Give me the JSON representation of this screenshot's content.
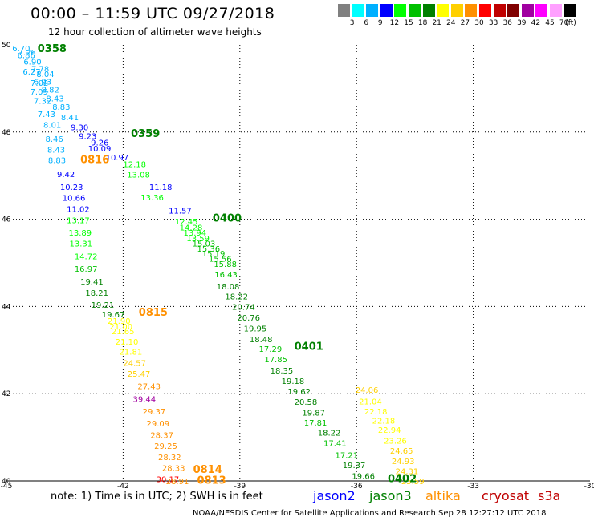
{
  "header": {
    "title": "00:00 – 11:59 UTC 09/27/2018",
    "subtitle": "12 hour collection of altimeter wave heights"
  },
  "colorbar": {
    "colors": [
      "#808080",
      "#00ffff",
      "#00b0ff",
      "#0000ff",
      "#00ff00",
      "#00c000",
      "#008000",
      "#ffff00",
      "#ffd000",
      "#ff9000",
      "#ff0000",
      "#c00000",
      "#800000",
      "#a000a0",
      "#ff00ff",
      "#ffa0ff",
      "#000000"
    ],
    "ticks": [
      "3",
      "6",
      "9",
      "12",
      "15",
      "18",
      "21",
      "24",
      "27",
      "30",
      "33",
      "36",
      "39",
      "42",
      "45",
      "70"
    ],
    "unit": "(ft)"
  },
  "legend": {
    "note": "note: 1) Time is in UTC; 2) SWH is in feet",
    "satellites": [
      {
        "name": "jason2",
        "color": "#0000ff"
      },
      {
        "name": "jason3",
        "color": "#008000"
      },
      {
        "name": "altika",
        "color": "#ff9000"
      },
      {
        "name": "cryosat",
        "color": "#c00000"
      },
      {
        "name": "s3a",
        "color": "#c00000"
      }
    ]
  },
  "footer": {
    "credit": "NOAA/NESDIS Center for Satellite Applications and Research   Sep 28 12:27:12 UTC 2018"
  },
  "chart_data": {
    "type": "scatter",
    "title": "12 hour collection of altimeter wave heights",
    "xlim": [
      -45,
      -30
    ],
    "ylim": [
      40,
      50
    ],
    "xticks": [
      "-45",
      "-42",
      "-39",
      "-36",
      "-33",
      "-30"
    ],
    "yticks": [
      "40",
      "42",
      "44",
      "46",
      "48",
      "50"
    ],
    "grid": true,
    "times": [
      {
        "label": "0358",
        "lon": -44.2,
        "lat": 49.93
      },
      {
        "label": "0359",
        "lon": -41.8,
        "lat": 47.98
      },
      {
        "label": "0400",
        "lon": -39.7,
        "lat": 46.04
      },
      {
        "label": "0401",
        "lon": -37.6,
        "lat": 43.1
      },
      {
        "label": "0402",
        "lon": -35.2,
        "lat": 40.06
      },
      {
        "label": "0815",
        "lon": -41.6,
        "lat": 43.88
      },
      {
        "label": "0814",
        "lon": -40.2,
        "lat": 40.28
      },
      {
        "label": "0813",
        "lon": -40.1,
        "lat": 40.03
      },
      {
        "label": "0816",
        "lon": -43.1,
        "lat": 47.38
      }
    ],
    "tracks": [
      {
        "points": [
          [
            -44.85,
            49.93,
            "6.70"
          ],
          [
            -44.7,
            49.83,
            "7.26"
          ],
          [
            -44.72,
            49.77,
            "6.86"
          ],
          [
            -44.56,
            49.62,
            "6.90"
          ],
          [
            -44.36,
            49.46,
            "7.78"
          ],
          [
            -44.58,
            49.39,
            "6.27"
          ],
          [
            -44.23,
            49.34,
            "8.04"
          ],
          [
            -44.3,
            49.16,
            "6.93"
          ],
          [
            -44.38,
            49.14,
            "7.02"
          ],
          [
            -44.1,
            48.98,
            "8.82"
          ],
          [
            -44.39,
            48.93,
            "7.09"
          ],
          [
            -43.98,
            48.78,
            "8.43"
          ],
          [
            -44.3,
            48.72,
            "7.32"
          ],
          [
            -43.82,
            48.58,
            "8.83"
          ],
          [
            -44.2,
            48.42,
            "7.43"
          ],
          [
            -43.6,
            48.35,
            "8.41"
          ],
          [
            -44.05,
            48.17,
            "8.01"
          ]
        ]
      },
      {
        "points": [
          [
            -43.35,
            48.12,
            "9.30"
          ],
          [
            -43.14,
            47.91,
            "9.23"
          ],
          [
            -42.83,
            47.77,
            "9.26"
          ],
          [
            -42.9,
            47.63,
            "10.09"
          ],
          [
            -42.45,
            47.43,
            "10.97"
          ]
        ]
      },
      {
        "points": [
          [
            -44.0,
            47.85,
            "8.46"
          ],
          [
            -43.95,
            47.6,
            "8.43"
          ],
          [
            -43.93,
            47.36,
            "8.83"
          ],
          [
            -43.7,
            47.04,
            "9.42"
          ],
          [
            -43.62,
            46.75,
            "10.23"
          ],
          [
            -43.56,
            46.5,
            "10.66"
          ],
          [
            -43.45,
            46.24,
            "11.02"
          ],
          [
            -43.45,
            45.98,
            "13.17"
          ],
          [
            -43.4,
            45.7,
            "13.89"
          ],
          [
            -43.38,
            45.45,
            "13.31"
          ],
          [
            -43.25,
            45.16,
            "14.72"
          ],
          [
            -43.25,
            44.87,
            "16.97"
          ],
          [
            -43.1,
            44.58,
            "19.41"
          ],
          [
            -42.97,
            44.32,
            "18.21"
          ],
          [
            -42.82,
            44.04,
            "19.21"
          ],
          [
            -42.55,
            43.82,
            "19.67"
          ],
          [
            -42.35,
            43.55,
            "21.00"
          ]
        ]
      },
      {
        "points": [
          [
            -42.0,
            47.27,
            "12.18"
          ],
          [
            -41.9,
            47.03,
            "13.08"
          ],
          [
            -41.33,
            46.75,
            "11.18"
          ],
          [
            -41.55,
            46.51,
            "13.36"
          ],
          [
            -40.83,
            46.2,
            "11.57"
          ],
          [
            -40.67,
            45.96,
            "12.45"
          ],
          [
            -40.55,
            45.82,
            "14.28"
          ],
          [
            -40.45,
            45.7,
            "13.94"
          ],
          [
            -40.37,
            45.57,
            "13.59"
          ],
          [
            -40.22,
            45.45,
            "15.03"
          ],
          [
            -40.1,
            45.33,
            "15.36"
          ],
          [
            -39.97,
            45.22,
            "15.19"
          ],
          [
            -39.8,
            45.1,
            "15.56"
          ],
          [
            -39.67,
            44.98,
            "15.88"
          ]
        ]
      },
      {
        "points": [
          [
            -39.65,
            44.74,
            "16.43"
          ],
          [
            -39.6,
            44.47,
            "18.08"
          ],
          [
            -39.38,
            44.24,
            "18.22"
          ],
          [
            -39.2,
            44.0,
            "20.74"
          ],
          [
            -39.07,
            43.75,
            "20.76"
          ],
          [
            -38.9,
            43.5,
            "19.95"
          ],
          [
            -38.75,
            43.25,
            "18.48"
          ],
          [
            -38.51,
            43.03,
            "17.29"
          ],
          [
            -38.37,
            42.79,
            "17.85"
          ],
          [
            -38.22,
            42.54,
            "18.35"
          ],
          [
            -37.93,
            42.3,
            "19.18"
          ],
          [
            -37.77,
            42.06,
            "19.62"
          ],
          [
            -37.6,
            41.82,
            "20.58"
          ],
          [
            -37.4,
            41.57,
            "19.87"
          ],
          [
            -37.35,
            41.34,
            "17.81"
          ],
          [
            -37.0,
            41.11,
            "18.22"
          ],
          [
            -36.85,
            40.87,
            "17.41"
          ],
          [
            -36.55,
            40.6,
            "17.21"
          ],
          [
            -36.36,
            40.37,
            "19.37"
          ],
          [
            -36.12,
            40.12,
            "19.66"
          ]
        ]
      },
      {
        "points": [
          [
            -36.03,
            42.1,
            "24.06"
          ],
          [
            -35.94,
            41.83,
            "21.04"
          ],
          [
            -35.8,
            41.6,
            "22.18"
          ],
          [
            -35.6,
            41.39,
            "22.18"
          ],
          [
            -35.45,
            41.18,
            "22.94"
          ],
          [
            -35.3,
            40.93,
            "23.26"
          ],
          [
            -35.14,
            40.7,
            "24.65"
          ],
          [
            -35.1,
            40.46,
            "24.93"
          ],
          [
            -35.0,
            40.23,
            "24.31"
          ],
          [
            -34.85,
            40.0,
            "25.59"
          ]
        ]
      },
      {
        "points": [
          [
            -42.4,
            43.68,
            "21.90"
          ],
          [
            -42.3,
            43.44,
            "21.65"
          ],
          [
            -42.2,
            43.2,
            "21.10"
          ],
          [
            -42.1,
            42.97,
            "21.81"
          ],
          [
            -42.0,
            42.71,
            "24.57"
          ],
          [
            -41.89,
            42.46,
            "25.47"
          ],
          [
            -41.63,
            42.18,
            "27.43"
          ],
          [
            -41.75,
            41.88,
            "39.44"
          ],
          [
            -41.5,
            41.6,
            "29.37"
          ],
          [
            -41.4,
            41.32,
            "29.09"
          ],
          [
            -41.3,
            41.06,
            "28.37"
          ],
          [
            -41.2,
            40.81,
            "29.25"
          ],
          [
            -41.1,
            40.55,
            "28.32"
          ],
          [
            -41.0,
            40.3,
            "28.33"
          ],
          [
            -41.15,
            40.05,
            "30.17"
          ],
          [
            -40.9,
            40.0,
            "28.91"
          ]
        ]
      }
    ]
  }
}
